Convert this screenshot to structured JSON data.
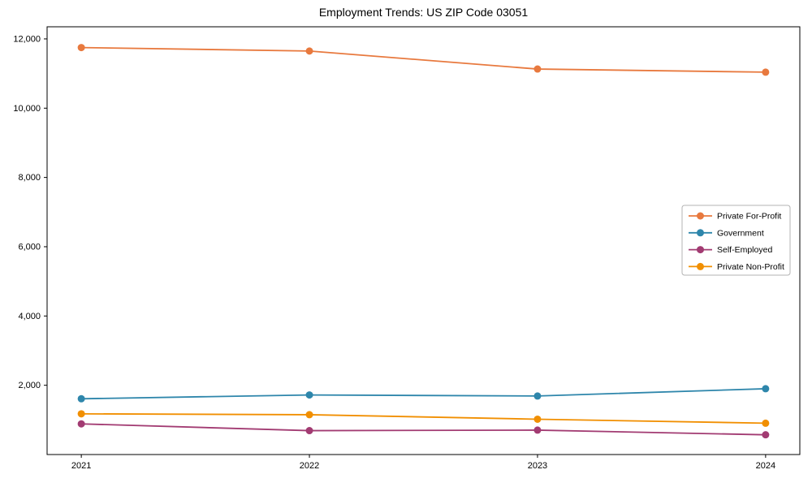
{
  "chart_data": {
    "type": "line",
    "title": "Employment Trends: US ZIP Code 03051",
    "xlabel": "",
    "ylabel": "",
    "x": [
      "2021",
      "2022",
      "2023",
      "2024"
    ],
    "series": [
      {
        "name": "Private For-Profit",
        "color": "#E8793E",
        "values": [
          11750,
          11650,
          11130,
          11040
        ]
      },
      {
        "name": "Government",
        "color": "#2E86AB",
        "values": [
          1610,
          1720,
          1690,
          1900
        ]
      },
      {
        "name": "Self-Employed",
        "color": "#A23B72",
        "values": [
          885,
          690,
          705,
          570
        ]
      },
      {
        "name": "Private Non-Profit",
        "color": "#F18F01",
        "values": [
          1175,
          1150,
          1020,
          905
        ]
      }
    ],
    "ylim": [
      0,
      12350
    ],
    "yticks": [
      2000,
      4000,
      6000,
      8000,
      10000,
      12000
    ],
    "grid": false,
    "legend_position": "right",
    "frame_color": "#000000",
    "legend_border_color": "#b3b3b3"
  }
}
